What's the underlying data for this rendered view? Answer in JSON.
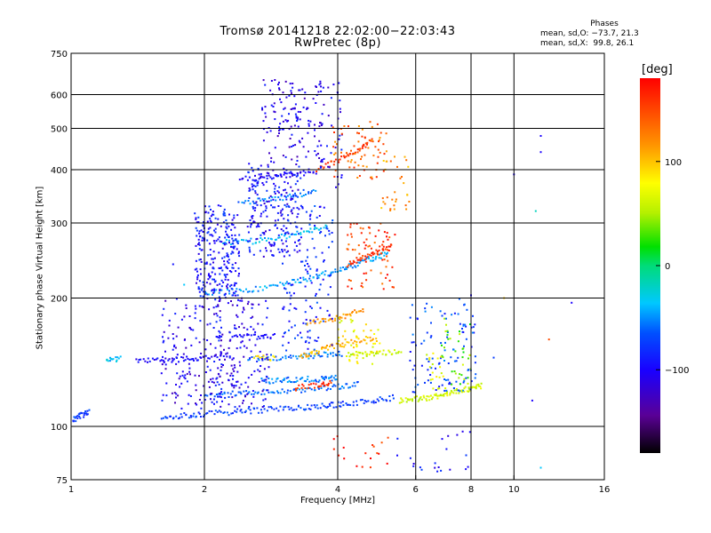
{
  "chart_data": {
    "type": "scatter",
    "title": "Tromsø 20141218 22:02:00−22:03:43",
    "subtitle": "RwPretec (8p)",
    "xlabel": "Frequency [MHz]",
    "ylabel": "Stationary phase Virtual Height [km]",
    "xscale": "log",
    "yscale": "log",
    "xlim": [
      1,
      16
    ],
    "ylim": [
      75,
      750
    ],
    "xticks": [
      1,
      2,
      4,
      6,
      8,
      10,
      16
    ],
    "xtick_labels": [
      "1",
      "2",
      "4",
      "6",
      "8",
      "10",
      "16"
    ],
    "yticks": [
      75,
      100,
      200,
      300,
      400,
      500,
      600,
      750
    ],
    "ytick_labels": [
      "75",
      "100",
      "200",
      "300",
      "400",
      "500",
      "600",
      "750"
    ],
    "grid_x": [
      2,
      4,
      6,
      8,
      10
    ],
    "grid_y": [
      100,
      200,
      300,
      400,
      500,
      600
    ],
    "grid": true,
    "colorbar": {
      "label": "[deg]",
      "range": [
        -180,
        180
      ],
      "ticks": [
        100,
        0,
        -100
      ],
      "tick_labels": [
        "100",
        "0",
        "−100"
      ],
      "colormap": "rainbow (black → violet → blue → cyan → green → yellow → orange → red)"
    },
    "phase_stats": {
      "heading": "Phases",
      "line_o": "mean, sd,O: −73.7, 21.3",
      "line_x": "mean, sd,X:  99.8, 26.1"
    },
    "traces": [
      {
        "f": [
          1.0,
          1.05,
          1.1
        ],
        "h": [
          103,
          106,
          108
        ],
        "phase": -80
      },
      {
        "f": [
          1.6,
          1.8,
          2.0,
          2.3,
          2.6,
          3.0,
          3.4,
          3.8,
          4.2,
          4.8,
          5.4
        ],
        "h": [
          105,
          106,
          107,
          108,
          109,
          110,
          111,
          112,
          113,
          115,
          117
        ],
        "phase": -80
      },
      {
        "f": [
          5.5,
          6.0,
          6.5,
          7.0,
          7.5,
          8.0,
          8.5
        ],
        "h": [
          115,
          116,
          117,
          119,
          121,
          123,
          125
        ],
        "phase": 60
      },
      {
        "f": [
          2.0,
          2.3,
          2.6,
          3.0,
          3.5,
          4.0,
          4.5
        ],
        "h": [
          117,
          119,
          120,
          121,
          122,
          124,
          126
        ],
        "phase": -65
      },
      {
        "f": [
          3.2,
          3.6,
          3.9
        ],
        "h": [
          123,
          125,
          127
        ],
        "phase": 160
      },
      {
        "f": [
          2.7,
          3.0,
          3.3,
          3.7,
          4.0
        ],
        "h": [
          128,
          128,
          129,
          129,
          130
        ],
        "phase": -60
      },
      {
        "f": [
          1.4,
          1.6,
          1.8,
          2.0,
          2.3
        ],
        "h": [
          143,
          143,
          144,
          145,
          146
        ],
        "phase": -110
      },
      {
        "f": [
          1.2,
          1.3
        ],
        "h": [
          143,
          144
        ],
        "phase": -40
      },
      {
        "f": [
          2.5,
          2.9,
          3.3,
          3.7,
          4.1
        ],
        "h": [
          145,
          145,
          146,
          147,
          148
        ],
        "phase": -60
      },
      {
        "f": [
          2.6,
          2.9
        ],
        "h": [
          144,
          145
        ],
        "phase": 90
      },
      {
        "f": [
          3.3,
          3.6,
          3.9,
          4.4,
          4.9
        ],
        "h": [
          146,
          150,
          154,
          158,
          162
        ],
        "phase": 110
      },
      {
        "f": [
          4.2,
          4.6,
          5.0,
          5.6
        ],
        "h": [
          148,
          148,
          149,
          150
        ],
        "phase": 60
      },
      {
        "f": [
          2.3,
          2.6,
          2.9
        ],
        "h": [
          162,
          162,
          163
        ],
        "phase": -105
      },
      {
        "f": [
          3.4,
          3.8,
          4.2,
          4.6
        ],
        "h": [
          175,
          178,
          182,
          188
        ],
        "phase": 120
      },
      {
        "f": [
          2.0,
          2.4,
          2.8,
          3.2,
          3.6,
          4.0,
          4.4,
          4.8,
          5.2
        ],
        "h": [
          205,
          208,
          212,
          218,
          225,
          232,
          240,
          248,
          255
        ],
        "phase": -50
      },
      {
        "f": [
          4.2,
          4.6,
          5.0,
          5.3
        ],
        "h": [
          240,
          250,
          258,
          265
        ],
        "phase": 160
      },
      {
        "f": [
          2.2,
          2.6,
          3.0,
          3.4,
          3.8
        ],
        "h": [
          270,
          272,
          278,
          285,
          295
        ],
        "phase": -40
      },
      {
        "f": [
          2.4,
          2.8,
          3.2,
          3.6
        ],
        "h": [
          335,
          340,
          348,
          360
        ],
        "phase": -60
      },
      {
        "f": [
          2.4,
          2.8,
          3.2,
          3.6
        ],
        "h": [
          380,
          384,
          390,
          398
        ],
        "phase": -110
      },
      {
        "f": [
          3.6,
          4.0,
          4.4,
          4.8
        ],
        "h": [
          400,
          420,
          440,
          470
        ],
        "phase": 160
      }
    ],
    "clusters": [
      {
        "f": [
          1.9,
          2.4
        ],
        "h": [
          200,
          330
        ],
        "phase": -100,
        "count": 260
      },
      {
        "f": [
          1.6,
          2.2
        ],
        "h": [
          110,
          200
        ],
        "phase": -115,
        "count": 150
      },
      {
        "f": [
          2.1,
          2.8
        ],
        "h": [
          110,
          200
        ],
        "phase": -110,
        "count": 160
      },
      {
        "f": [
          2.5,
          3.3
        ],
        "h": [
          250,
          420
        ],
        "phase": -105,
        "count": 210
      },
      {
        "f": [
          2.7,
          3.7
        ],
        "h": [
          420,
          650
        ],
        "phase": -115,
        "count": 130
      },
      {
        "f": [
          3.0,
          3.9
        ],
        "h": [
          150,
          330
        ],
        "phase": -90,
        "count": 140
      },
      {
        "f": [
          3.6,
          4.1
        ],
        "h": [
          360,
          640
        ],
        "phase": -110,
        "count": 40
      },
      {
        "f": [
          3.9,
          5.2
        ],
        "h": [
          380,
          520
        ],
        "phase": 140,
        "count": 70
      },
      {
        "f": [
          4.2,
          5.4
        ],
        "h": [
          210,
          300
        ],
        "phase": 155,
        "count": 70
      },
      {
        "f": [
          5.0,
          5.8
        ],
        "h": [
          320,
          430
        ],
        "phase": 120,
        "count": 30
      },
      {
        "f": [
          4.0,
          5.0
        ],
        "h": [
          140,
          180
        ],
        "phase": 80,
        "count": 45
      },
      {
        "f": [
          5.8,
          8.2
        ],
        "h": [
          120,
          200
        ],
        "phase": -80,
        "count": 110
      },
      {
        "f": [
          6.8,
          8.0
        ],
        "h": [
          125,
          180
        ],
        "phase": 40,
        "count": 35
      },
      {
        "f": [
          3.9,
          5.2
        ],
        "h": [
          80,
          95
        ],
        "phase": 170,
        "count": 18
      },
      {
        "f": [
          5.4,
          8.2
        ],
        "h": [
          78,
          98
        ],
        "phase": -100,
        "count": 22
      },
      {
        "f": [
          6.3,
          7.0
        ],
        "h": [
          120,
          150
        ],
        "phase": 75,
        "count": 20
      }
    ],
    "isolated_points": [
      {
        "f": 10.0,
        "h": 390,
        "phase": -110
      },
      {
        "f": 11.5,
        "h": 480,
        "phase": -110
      },
      {
        "f": 11.5,
        "h": 440,
        "phase": -110
      },
      {
        "f": 11.2,
        "h": 320,
        "phase": -20
      },
      {
        "f": 12.0,
        "h": 160,
        "phase": 150
      },
      {
        "f": 13.5,
        "h": 195,
        "phase": -110
      },
      {
        "f": 11.0,
        "h": 115,
        "phase": -110
      },
      {
        "f": 11.5,
        "h": 80,
        "phase": -40
      },
      {
        "f": 8.0,
        "h": 203,
        "phase": -110
      },
      {
        "f": 9.5,
        "h": 200,
        "phase": 100
      },
      {
        "f": 9.0,
        "h": 145,
        "phase": -80
      },
      {
        "f": 5.7,
        "h": 330,
        "phase": 140
      },
      {
        "f": 1.8,
        "h": 215,
        "phase": -40
      },
      {
        "f": 1.7,
        "h": 240,
        "phase": -100
      }
    ]
  }
}
